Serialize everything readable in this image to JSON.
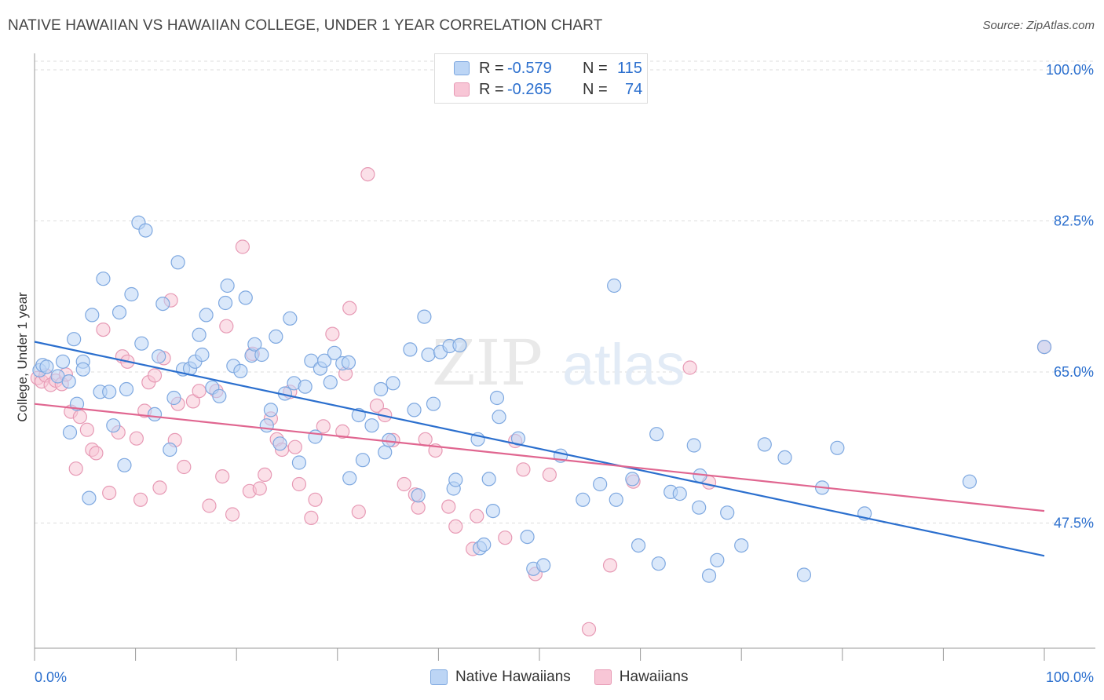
{
  "title": "NATIVE HAWAIIAN VS HAWAIIAN COLLEGE, UNDER 1 YEAR CORRELATION CHART",
  "source": "Source: ZipAtlas.com",
  "watermark": {
    "zip": "ZIP",
    "atlas": "atlas"
  },
  "legend": {
    "rows": [
      {
        "r_label": "R =",
        "r_value": "-0.579",
        "n_label": "N =",
        "n_value": "115"
      },
      {
        "r_label": "R =",
        "r_value": "-0.265",
        "n_label": "N =",
        "n_value": "74"
      }
    ]
  },
  "colors": {
    "blue_fill": "#bcd5f5",
    "blue_stroke": "#7ea8e0",
    "blue_line": "#2b6fce",
    "pink_fill": "#f8c6d6",
    "pink_stroke": "#e79ab5",
    "pink_line": "#e06690",
    "tick_label": "#2b6fce",
    "grid": "#dddddd"
  },
  "chart_data": {
    "type": "scatter",
    "title": "NATIVE HAWAIIAN VS HAWAIIAN COLLEGE, UNDER 1 YEAR CORRELATION CHART",
    "xlabel": "",
    "ylabel": "College, Under 1 year",
    "xlim": [
      0,
      100
    ],
    "ylim": [
      33,
      101
    ],
    "x_tick_labels": [
      "0.0%",
      "100.0%"
    ],
    "y_ticks": [
      {
        "value": 100,
        "label": "100.0%"
      },
      {
        "value": 82.5,
        "label": "82.5%"
      },
      {
        "value": 65,
        "label": "65.0%"
      },
      {
        "value": 47.5,
        "label": "47.5%"
      }
    ],
    "series": [
      {
        "name": "Native Hawaiians",
        "color_key": "blue",
        "trend": {
          "x0": 0,
          "y0": 68.5,
          "x1": 100,
          "y1": 43.7
        },
        "points": [
          [
            0.5,
            65.2
          ],
          [
            0.8,
            65.8
          ],
          [
            1.2,
            65.6
          ],
          [
            2.3,
            64.5
          ],
          [
            2.8,
            66.2
          ],
          [
            3.4,
            63.9
          ],
          [
            3.5,
            58.0
          ],
          [
            3.9,
            68.8
          ],
          [
            4.2,
            61.3
          ],
          [
            4.8,
            66.2
          ],
          [
            4.8,
            65.3
          ],
          [
            5.4,
            50.4
          ],
          [
            5.7,
            71.6
          ],
          [
            6.5,
            62.7
          ],
          [
            6.8,
            75.8
          ],
          [
            7.4,
            62.7
          ],
          [
            7.8,
            58.8
          ],
          [
            8.4,
            71.9
          ],
          [
            8.9,
            54.2
          ],
          [
            9.1,
            63.0
          ],
          [
            9.6,
            74.0
          ],
          [
            10.3,
            82.3
          ],
          [
            10.6,
            68.3
          ],
          [
            11.0,
            81.4
          ],
          [
            11.9,
            60.1
          ],
          [
            12.3,
            66.8
          ],
          [
            12.7,
            72.9
          ],
          [
            13.4,
            56.0
          ],
          [
            13.8,
            62.0
          ],
          [
            14.2,
            77.7
          ],
          [
            14.7,
            65.3
          ],
          [
            15.4,
            65.4
          ],
          [
            15.9,
            66.2
          ],
          [
            16.3,
            69.3
          ],
          [
            16.6,
            67.0
          ],
          [
            17.0,
            71.6
          ],
          [
            17.6,
            63.2
          ],
          [
            18.3,
            62.2
          ],
          [
            18.9,
            73.0
          ],
          [
            19.1,
            75.0
          ],
          [
            19.7,
            65.7
          ],
          [
            20.4,
            65.1
          ],
          [
            20.9,
            73.6
          ],
          [
            21.5,
            66.9
          ],
          [
            21.8,
            68.2
          ],
          [
            22.5,
            67.0
          ],
          [
            23.0,
            58.8
          ],
          [
            23.4,
            60.6
          ],
          [
            23.9,
            69.1
          ],
          [
            24.3,
            56.7
          ],
          [
            24.8,
            62.5
          ],
          [
            25.3,
            71.2
          ],
          [
            25.7,
            63.7
          ],
          [
            26.2,
            54.5
          ],
          [
            26.8,
            63.3
          ],
          [
            27.4,
            66.3
          ],
          [
            27.8,
            57.5
          ],
          [
            28.3,
            65.4
          ],
          [
            28.7,
            66.3
          ],
          [
            29.3,
            63.8
          ],
          [
            29.7,
            67.2
          ],
          [
            30.5,
            66.0
          ],
          [
            31.1,
            66.1
          ],
          [
            31.2,
            52.7
          ],
          [
            32.1,
            60.0
          ],
          [
            32.5,
            54.8
          ],
          [
            33.4,
            58.8
          ],
          [
            34.3,
            63.0
          ],
          [
            34.7,
            55.7
          ],
          [
            35.1,
            57.1
          ],
          [
            35.5,
            63.7
          ],
          [
            37.2,
            67.6
          ],
          [
            37.6,
            60.6
          ],
          [
            38.0,
            50.7
          ],
          [
            38.6,
            71.4
          ],
          [
            39.0,
            67.0
          ],
          [
            39.5,
            61.3
          ],
          [
            40.2,
            67.3
          ],
          [
            41.1,
            68.0
          ],
          [
            41.5,
            51.5
          ],
          [
            41.7,
            52.5
          ],
          [
            42.1,
            68.1
          ],
          [
            43.9,
            57.2
          ],
          [
            44.1,
            44.6
          ],
          [
            44.5,
            45.0
          ],
          [
            45.0,
            52.6
          ],
          [
            45.4,
            48.9
          ],
          [
            45.8,
            62.0
          ],
          [
            46.0,
            59.8
          ],
          [
            47.9,
            57.3
          ],
          [
            48.8,
            45.9
          ],
          [
            49.4,
            42.2
          ],
          [
            50.4,
            42.6
          ],
          [
            52.1,
            55.3
          ],
          [
            54.3,
            50.2
          ],
          [
            56.0,
            52.0
          ],
          [
            57.4,
            75.0
          ],
          [
            57.6,
            50.2
          ],
          [
            59.2,
            52.6
          ],
          [
            59.8,
            44.9
          ],
          [
            61.6,
            57.8
          ],
          [
            61.8,
            42.8
          ],
          [
            63.0,
            51.1
          ],
          [
            63.9,
            50.9
          ],
          [
            65.3,
            56.5
          ],
          [
            65.9,
            53.0
          ],
          [
            65.8,
            49.3
          ],
          [
            66.8,
            41.4
          ],
          [
            67.6,
            43.2
          ],
          [
            68.6,
            48.7
          ],
          [
            70.0,
            44.9
          ],
          [
            72.3,
            56.6
          ],
          [
            74.3,
            55.1
          ],
          [
            76.2,
            41.5
          ],
          [
            78.0,
            51.6
          ],
          [
            79.5,
            56.2
          ],
          [
            82.2,
            48.6
          ],
          [
            92.6,
            52.3
          ],
          [
            100.0,
            67.9
          ]
        ]
      },
      {
        "name": "Hawaiians",
        "color_key": "pink",
        "trend": {
          "x0": 0,
          "y0": 61.3,
          "x1": 100,
          "y1": 48.9
        },
        "points": [
          [
            0.3,
            64.3
          ],
          [
            0.7,
            63.9
          ],
          [
            1.1,
            64.6
          ],
          [
            1.6,
            63.5
          ],
          [
            2.1,
            64.0
          ],
          [
            2.7,
            63.6
          ],
          [
            3.1,
            64.7
          ],
          [
            3.6,
            60.4
          ],
          [
            4.1,
            53.8
          ],
          [
            4.5,
            59.8
          ],
          [
            5.2,
            58.3
          ],
          [
            5.7,
            56.0
          ],
          [
            6.1,
            55.6
          ],
          [
            6.8,
            69.9
          ],
          [
            7.4,
            51.0
          ],
          [
            8.3,
            58.0
          ],
          [
            8.7,
            66.8
          ],
          [
            9.2,
            66.2
          ],
          [
            10.1,
            57.3
          ],
          [
            10.5,
            50.2
          ],
          [
            10.9,
            60.5
          ],
          [
            11.3,
            63.8
          ],
          [
            11.9,
            64.6
          ],
          [
            12.4,
            51.6
          ],
          [
            12.8,
            66.6
          ],
          [
            13.5,
            73.3
          ],
          [
            13.9,
            57.1
          ],
          [
            14.2,
            61.3
          ],
          [
            14.8,
            54.0
          ],
          [
            15.7,
            61.6
          ],
          [
            16.3,
            62.8
          ],
          [
            17.3,
            49.5
          ],
          [
            18.0,
            62.8
          ],
          [
            18.6,
            52.9
          ],
          [
            19.0,
            70.3
          ],
          [
            19.6,
            48.5
          ],
          [
            20.6,
            79.5
          ],
          [
            21.3,
            51.2
          ],
          [
            21.6,
            67.1
          ],
          [
            22.3,
            51.5
          ],
          [
            22.8,
            53.1
          ],
          [
            23.4,
            59.6
          ],
          [
            24.0,
            57.2
          ],
          [
            24.5,
            56.0
          ],
          [
            25.3,
            62.7
          ],
          [
            25.8,
            56.3
          ],
          [
            26.2,
            52.0
          ],
          [
            27.4,
            48.1
          ],
          [
            27.8,
            50.2
          ],
          [
            28.6,
            58.7
          ],
          [
            29.5,
            69.4
          ],
          [
            30.5,
            58.1
          ],
          [
            30.8,
            64.8
          ],
          [
            31.2,
            72.4
          ],
          [
            32.1,
            48.8
          ],
          [
            33.0,
            87.9
          ],
          [
            33.9,
            61.1
          ],
          [
            34.7,
            60.0
          ],
          [
            35.5,
            57.1
          ],
          [
            36.6,
            52.0
          ],
          [
            37.7,
            50.8
          ],
          [
            38.0,
            49.3
          ],
          [
            38.7,
            57.2
          ],
          [
            39.7,
            55.9
          ],
          [
            41.0,
            49.4
          ],
          [
            41.7,
            47.1
          ],
          [
            43.4,
            44.5
          ],
          [
            43.8,
            48.3
          ],
          [
            46.6,
            45.8
          ],
          [
            47.6,
            57.0
          ],
          [
            48.4,
            53.7
          ],
          [
            49.6,
            41.6
          ],
          [
            51.0,
            53.1
          ],
          [
            54.9,
            35.2
          ],
          [
            57.0,
            42.6
          ],
          [
            59.3,
            52.3
          ],
          [
            64.9,
            65.5
          ],
          [
            66.8,
            52.2
          ],
          [
            100.0,
            67.9
          ]
        ]
      }
    ]
  },
  "bottom_legend": [
    "Native Hawaiians",
    "Hawaiians"
  ]
}
